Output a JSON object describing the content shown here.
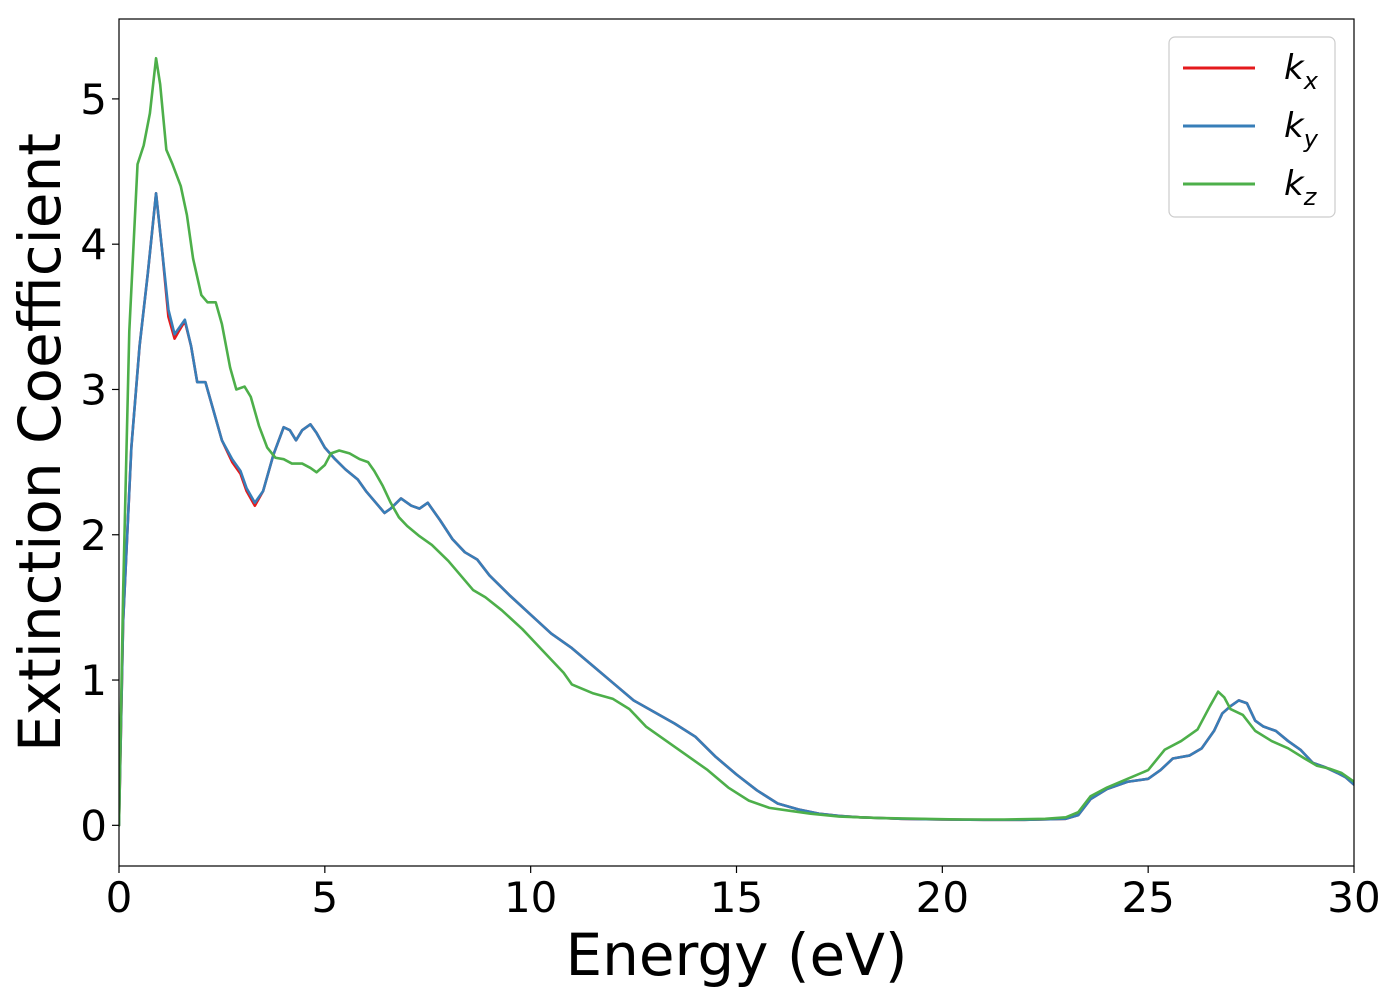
{
  "chart_data": {
    "type": "line",
    "xlabel": "Energy (eV)",
    "ylabel": "Extinction Coefficient",
    "xlim": [
      0,
      30
    ],
    "ylim": [
      -0.28,
      5.55
    ],
    "xticks": [
      "0",
      "5",
      "10",
      "15",
      "20",
      "25",
      "30"
    ],
    "yticks": [
      "0",
      "1",
      "2",
      "3",
      "4",
      "5"
    ],
    "grid": false,
    "legend_position": "top-right",
    "series": [
      {
        "name": "k_x",
        "legend_base": "k",
        "legend_sub": "x",
        "color": "#e41a1c",
        "points": [
          [
            0,
            0
          ],
          [
            0.1,
            1.4
          ],
          [
            0.3,
            2.6
          ],
          [
            0.5,
            3.3
          ],
          [
            0.7,
            3.8
          ],
          [
            0.9,
            4.35
          ],
          [
            1.05,
            3.95
          ],
          [
            1.2,
            3.5
          ],
          [
            1.35,
            3.35
          ],
          [
            1.45,
            3.4
          ],
          [
            1.6,
            3.47
          ],
          [
            1.75,
            3.3
          ],
          [
            1.9,
            3.05
          ],
          [
            2.1,
            3.05
          ],
          [
            2.3,
            2.85
          ],
          [
            2.5,
            2.65
          ],
          [
            2.75,
            2.5
          ],
          [
            2.95,
            2.42
          ],
          [
            3.1,
            2.3
          ],
          [
            3.3,
            2.2
          ],
          [
            3.5,
            2.3
          ],
          [
            3.75,
            2.55
          ],
          [
            4.0,
            2.74
          ],
          [
            4.15,
            2.72
          ],
          [
            4.3,
            2.65
          ],
          [
            4.45,
            2.72
          ],
          [
            4.65,
            2.76
          ],
          [
            4.8,
            2.7
          ],
          [
            5.0,
            2.6
          ],
          [
            5.25,
            2.52
          ],
          [
            5.5,
            2.45
          ],
          [
            5.8,
            2.38
          ],
          [
            6.0,
            2.3
          ],
          [
            6.3,
            2.2
          ],
          [
            6.45,
            2.15
          ],
          [
            6.6,
            2.18
          ],
          [
            6.85,
            2.25
          ],
          [
            7.1,
            2.2
          ],
          [
            7.3,
            2.18
          ],
          [
            7.5,
            2.22
          ],
          [
            7.8,
            2.1
          ],
          [
            8.1,
            1.97
          ],
          [
            8.4,
            1.88
          ],
          [
            8.7,
            1.83
          ],
          [
            9.0,
            1.72
          ],
          [
            9.5,
            1.58
          ],
          [
            10.0,
            1.45
          ],
          [
            10.5,
            1.32
          ],
          [
            11.0,
            1.22
          ],
          [
            11.5,
            1.1
          ],
          [
            12.0,
            0.98
          ],
          [
            12.5,
            0.86
          ],
          [
            13.0,
            0.78
          ],
          [
            13.5,
            0.7
          ],
          [
            14.0,
            0.61
          ],
          [
            14.5,
            0.47
          ],
          [
            15.0,
            0.35
          ],
          [
            15.5,
            0.24
          ],
          [
            16.0,
            0.15
          ],
          [
            16.5,
            0.11
          ],
          [
            17.0,
            0.08
          ],
          [
            17.5,
            0.065
          ],
          [
            18.0,
            0.055
          ],
          [
            19.0,
            0.045
          ],
          [
            20.0,
            0.04
          ],
          [
            21.0,
            0.038
          ],
          [
            22.0,
            0.038
          ],
          [
            23.0,
            0.045
          ],
          [
            23.3,
            0.07
          ],
          [
            23.6,
            0.18
          ],
          [
            24.0,
            0.25
          ],
          [
            24.5,
            0.3
          ],
          [
            25.0,
            0.32
          ],
          [
            25.3,
            0.38
          ],
          [
            25.6,
            0.46
          ],
          [
            26.0,
            0.48
          ],
          [
            26.3,
            0.53
          ],
          [
            26.6,
            0.65
          ],
          [
            26.8,
            0.77
          ],
          [
            27.0,
            0.82
          ],
          [
            27.2,
            0.86
          ],
          [
            27.4,
            0.84
          ],
          [
            27.6,
            0.72
          ],
          [
            27.8,
            0.68
          ],
          [
            28.1,
            0.65
          ],
          [
            28.4,
            0.58
          ],
          [
            28.7,
            0.52
          ],
          [
            29.0,
            0.43
          ],
          [
            29.3,
            0.4
          ],
          [
            29.6,
            0.36
          ],
          [
            29.8,
            0.33
          ],
          [
            30.0,
            0.28
          ]
        ]
      },
      {
        "name": "k_y",
        "legend_base": "k",
        "legend_sub": "y",
        "color": "#377eb8",
        "points": [
          [
            0,
            0
          ],
          [
            0.1,
            1.4
          ],
          [
            0.3,
            2.6
          ],
          [
            0.5,
            3.3
          ],
          [
            0.7,
            3.8
          ],
          [
            0.9,
            4.35
          ],
          [
            1.05,
            3.95
          ],
          [
            1.2,
            3.55
          ],
          [
            1.35,
            3.38
          ],
          [
            1.45,
            3.42
          ],
          [
            1.6,
            3.48
          ],
          [
            1.75,
            3.3
          ],
          [
            1.9,
            3.05
          ],
          [
            2.1,
            3.05
          ],
          [
            2.3,
            2.85
          ],
          [
            2.5,
            2.65
          ],
          [
            2.75,
            2.52
          ],
          [
            2.95,
            2.44
          ],
          [
            3.1,
            2.32
          ],
          [
            3.3,
            2.22
          ],
          [
            3.5,
            2.3
          ],
          [
            3.75,
            2.55
          ],
          [
            4.0,
            2.74
          ],
          [
            4.15,
            2.72
          ],
          [
            4.3,
            2.65
          ],
          [
            4.45,
            2.72
          ],
          [
            4.65,
            2.76
          ],
          [
            4.8,
            2.7
          ],
          [
            5.0,
            2.6
          ],
          [
            5.25,
            2.52
          ],
          [
            5.5,
            2.45
          ],
          [
            5.8,
            2.38
          ],
          [
            6.0,
            2.3
          ],
          [
            6.3,
            2.2
          ],
          [
            6.45,
            2.15
          ],
          [
            6.6,
            2.18
          ],
          [
            6.85,
            2.25
          ],
          [
            7.1,
            2.2
          ],
          [
            7.3,
            2.18
          ],
          [
            7.5,
            2.22
          ],
          [
            7.8,
            2.1
          ],
          [
            8.1,
            1.97
          ],
          [
            8.4,
            1.88
          ],
          [
            8.7,
            1.83
          ],
          [
            9.0,
            1.72
          ],
          [
            9.5,
            1.58
          ],
          [
            10.0,
            1.45
          ],
          [
            10.5,
            1.32
          ],
          [
            11.0,
            1.22
          ],
          [
            11.5,
            1.1
          ],
          [
            12.0,
            0.98
          ],
          [
            12.5,
            0.86
          ],
          [
            13.0,
            0.78
          ],
          [
            13.5,
            0.7
          ],
          [
            14.0,
            0.61
          ],
          [
            14.5,
            0.47
          ],
          [
            15.0,
            0.35
          ],
          [
            15.5,
            0.24
          ],
          [
            16.0,
            0.15
          ],
          [
            16.5,
            0.11
          ],
          [
            17.0,
            0.08
          ],
          [
            17.5,
            0.065
          ],
          [
            18.0,
            0.055
          ],
          [
            19.0,
            0.045
          ],
          [
            20.0,
            0.04
          ],
          [
            21.0,
            0.038
          ],
          [
            22.0,
            0.038
          ],
          [
            23.0,
            0.045
          ],
          [
            23.3,
            0.07
          ],
          [
            23.6,
            0.18
          ],
          [
            24.0,
            0.25
          ],
          [
            24.5,
            0.3
          ],
          [
            25.0,
            0.32
          ],
          [
            25.3,
            0.38
          ],
          [
            25.6,
            0.46
          ],
          [
            26.0,
            0.48
          ],
          [
            26.3,
            0.53
          ],
          [
            26.6,
            0.65
          ],
          [
            26.8,
            0.77
          ],
          [
            27.0,
            0.82
          ],
          [
            27.2,
            0.86
          ],
          [
            27.4,
            0.84
          ],
          [
            27.6,
            0.72
          ],
          [
            27.8,
            0.68
          ],
          [
            28.1,
            0.65
          ],
          [
            28.4,
            0.58
          ],
          [
            28.7,
            0.52
          ],
          [
            29.0,
            0.43
          ],
          [
            29.3,
            0.4
          ],
          [
            29.6,
            0.36
          ],
          [
            29.8,
            0.33
          ],
          [
            30.0,
            0.28
          ]
        ]
      },
      {
        "name": "k_z",
        "legend_base": "k",
        "legend_sub": "z",
        "color": "#4daf4a",
        "points": [
          [
            0,
            0
          ],
          [
            0.1,
            1.6
          ],
          [
            0.25,
            3.4
          ],
          [
            0.45,
            4.55
          ],
          [
            0.6,
            4.68
          ],
          [
            0.75,
            4.9
          ],
          [
            0.9,
            5.28
          ],
          [
            1.0,
            5.1
          ],
          [
            1.15,
            4.65
          ],
          [
            1.3,
            4.55
          ],
          [
            1.5,
            4.4
          ],
          [
            1.65,
            4.2
          ],
          [
            1.8,
            3.9
          ],
          [
            2.0,
            3.65
          ],
          [
            2.15,
            3.6
          ],
          [
            2.35,
            3.6
          ],
          [
            2.5,
            3.45
          ],
          [
            2.7,
            3.15
          ],
          [
            2.85,
            3.0
          ],
          [
            3.05,
            3.02
          ],
          [
            3.2,
            2.95
          ],
          [
            3.4,
            2.75
          ],
          [
            3.6,
            2.6
          ],
          [
            3.8,
            2.53
          ],
          [
            4.0,
            2.52
          ],
          [
            4.2,
            2.49
          ],
          [
            4.45,
            2.49
          ],
          [
            4.65,
            2.46
          ],
          [
            4.8,
            2.43
          ],
          [
            5.0,
            2.48
          ],
          [
            5.15,
            2.56
          ],
          [
            5.35,
            2.58
          ],
          [
            5.6,
            2.56
          ],
          [
            5.85,
            2.52
          ],
          [
            6.05,
            2.5
          ],
          [
            6.2,
            2.44
          ],
          [
            6.4,
            2.34
          ],
          [
            6.6,
            2.22
          ],
          [
            6.8,
            2.12
          ],
          [
            7.0,
            2.06
          ],
          [
            7.3,
            1.99
          ],
          [
            7.6,
            1.93
          ],
          [
            8.0,
            1.82
          ],
          [
            8.3,
            1.72
          ],
          [
            8.6,
            1.62
          ],
          [
            8.9,
            1.57
          ],
          [
            9.3,
            1.48
          ],
          [
            9.8,
            1.35
          ],
          [
            10.3,
            1.2
          ],
          [
            10.8,
            1.05
          ],
          [
            11.0,
            0.97
          ],
          [
            11.5,
            0.91
          ],
          [
            12.0,
            0.87
          ],
          [
            12.4,
            0.8
          ],
          [
            12.8,
            0.68
          ],
          [
            13.3,
            0.58
          ],
          [
            13.8,
            0.48
          ],
          [
            14.3,
            0.38
          ],
          [
            14.8,
            0.26
          ],
          [
            15.3,
            0.17
          ],
          [
            15.8,
            0.12
          ],
          [
            16.3,
            0.1
          ],
          [
            16.8,
            0.08
          ],
          [
            17.5,
            0.06
          ],
          [
            18.5,
            0.05
          ],
          [
            19.5,
            0.045
          ],
          [
            20.5,
            0.04
          ],
          [
            21.5,
            0.04
          ],
          [
            22.5,
            0.045
          ],
          [
            23.0,
            0.055
          ],
          [
            23.3,
            0.09
          ],
          [
            23.6,
            0.2
          ],
          [
            24.0,
            0.26
          ],
          [
            24.5,
            0.32
          ],
          [
            25.0,
            0.38
          ],
          [
            25.4,
            0.52
          ],
          [
            25.8,
            0.58
          ],
          [
            26.2,
            0.66
          ],
          [
            26.5,
            0.82
          ],
          [
            26.7,
            0.92
          ],
          [
            26.85,
            0.88
          ],
          [
            27.0,
            0.8
          ],
          [
            27.3,
            0.76
          ],
          [
            27.6,
            0.65
          ],
          [
            28.0,
            0.58
          ],
          [
            28.4,
            0.53
          ],
          [
            28.8,
            0.46
          ],
          [
            29.1,
            0.41
          ],
          [
            29.4,
            0.39
          ],
          [
            29.7,
            0.36
          ],
          [
            29.9,
            0.32
          ],
          [
            30.0,
            0.3
          ]
        ]
      }
    ]
  }
}
